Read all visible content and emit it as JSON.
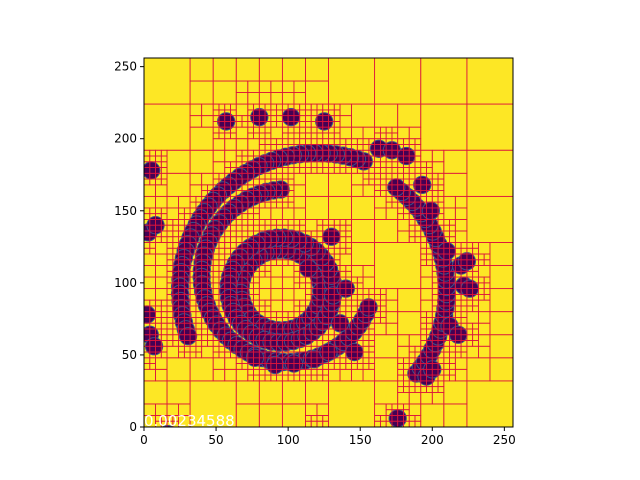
{
  "chart_data": {
    "type": "heatmap",
    "title": "",
    "xlabel": "",
    "ylabel": "",
    "xlim": [
      0,
      256
    ],
    "ylim": [
      0,
      256
    ],
    "x_ticks": [
      0,
      50,
      100,
      150,
      200,
      250
    ],
    "y_ticks": [
      0,
      50,
      100,
      150,
      200,
      250
    ],
    "annotation": "0.00234588",
    "colors": {
      "background_field": "#fde725",
      "blob": "#440154",
      "blob_edge": "#3b528b",
      "grid_lines": "#dc143c",
      "annotation": "#ffffff"
    },
    "structures": {
      "inner_ring": {
        "center": [
          95,
          95
        ],
        "radius": 28,
        "thickness": 14
      },
      "middle_ring_arcs": [
        {
          "center": [
            100,
            105
          ],
          "radius": 60,
          "from_deg": 95,
          "to_deg": 340
        }
      ],
      "outer_spiral_arcs": [
        {
          "center": [
            120,
            95
          ],
          "radius": 95,
          "from_deg": 70,
          "to_deg": 200
        },
        {
          "center": [
            120,
            95
          ],
          "radius": 90,
          "from_deg": -40,
          "to_deg": 55
        },
        {
          "center": [
            70,
            40
          ],
          "radius": 70,
          "from_deg": 220,
          "to_deg": 320
        }
      ],
      "blobs": [
        [
          57,
          212
        ],
        [
          80,
          215
        ],
        [
          102,
          215
        ],
        [
          125,
          212
        ],
        [
          163,
          193
        ],
        [
          172,
          192
        ],
        [
          182,
          188
        ],
        [
          193,
          168
        ],
        [
          199,
          150
        ],
        [
          210,
          122
        ],
        [
          220,
          112
        ],
        [
          224,
          115
        ],
        [
          222,
          98
        ],
        [
          226,
          96
        ],
        [
          212,
          70
        ],
        [
          218,
          64
        ],
        [
          140,
          96
        ],
        [
          136,
          72
        ],
        [
          130,
          132
        ],
        [
          114,
          110
        ],
        [
          77,
          48
        ],
        [
          91,
          43
        ],
        [
          104,
          44
        ],
        [
          118,
          47
        ],
        [
          128,
          52
        ],
        [
          146,
          52
        ],
        [
          176,
          6
        ],
        [
          196,
          35
        ],
        [
          200,
          40
        ],
        [
          2,
          78
        ],
        [
          4,
          64
        ],
        [
          7,
          56
        ],
        [
          5,
          178
        ],
        [
          3,
          135
        ],
        [
          8,
          140
        ]
      ]
    }
  }
}
